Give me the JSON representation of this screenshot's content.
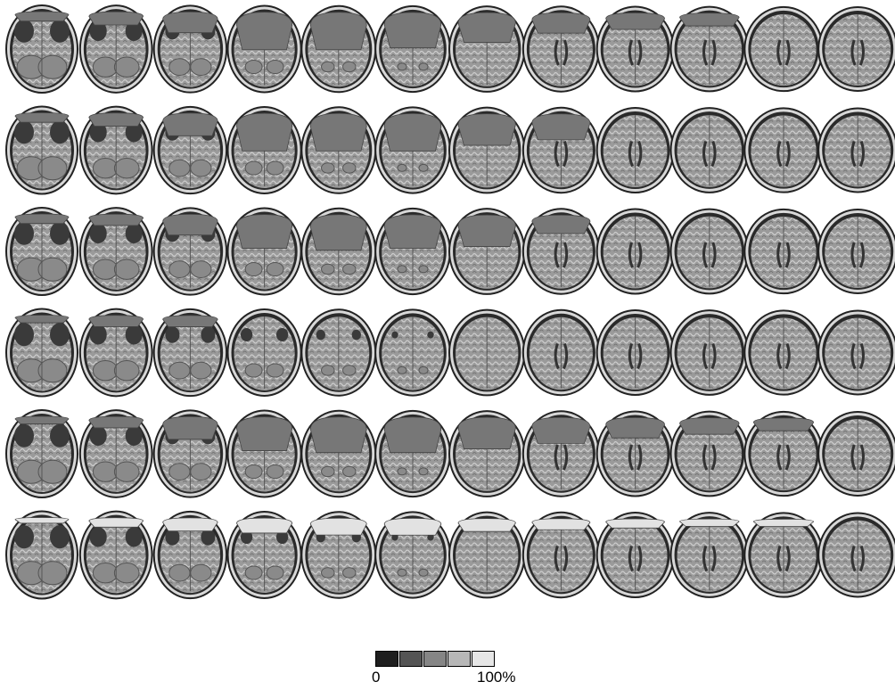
{
  "figure": {
    "rows": [
      {
        "cavity_level": [
          0.25,
          0.35,
          0.55,
          1.0,
          1.0,
          0.95,
          0.8,
          0.55,
          0.45,
          0.35,
          0.0,
          0.0
        ]
      },
      {
        "cavity_level": [
          0.25,
          0.35,
          0.6,
          1.0,
          1.0,
          1.0,
          0.85,
          0.7,
          0.0,
          0.0,
          0.0,
          0.0
        ]
      },
      {
        "cavity_level": [
          0.25,
          0.3,
          0.55,
          0.9,
          0.95,
          0.9,
          0.85,
          0.5,
          0.0,
          0.0,
          0.0,
          0.0
        ]
      },
      {
        "cavity_level": [
          0.2,
          0.3,
          0.3,
          0.0,
          0.0,
          0.0,
          0.0,
          0.0,
          0.0,
          0.0,
          0.0,
          0.0
        ]
      },
      {
        "cavity_level": [
          0.2,
          0.3,
          0.6,
          0.9,
          0.95,
          0.95,
          0.85,
          0.7,
          0.55,
          0.45,
          0.35,
          0.0
        ]
      },
      {
        "cavity_level": [
          0.15,
          0.25,
          0.35,
          0.4,
          0.45,
          0.45,
          0.35,
          0.3,
          0.25,
          0.2,
          0.2,
          0.0
        ]
      }
    ],
    "row6_cavity_color": "#e2e2e2",
    "cavity_color": "#777777"
  },
  "colorbar": {
    "min_label": "0",
    "max_label": "100%",
    "swatches": [
      "#1e1e1e",
      "#545454",
      "#858585",
      "#b7b7b7",
      "#e6e6e6"
    ]
  }
}
